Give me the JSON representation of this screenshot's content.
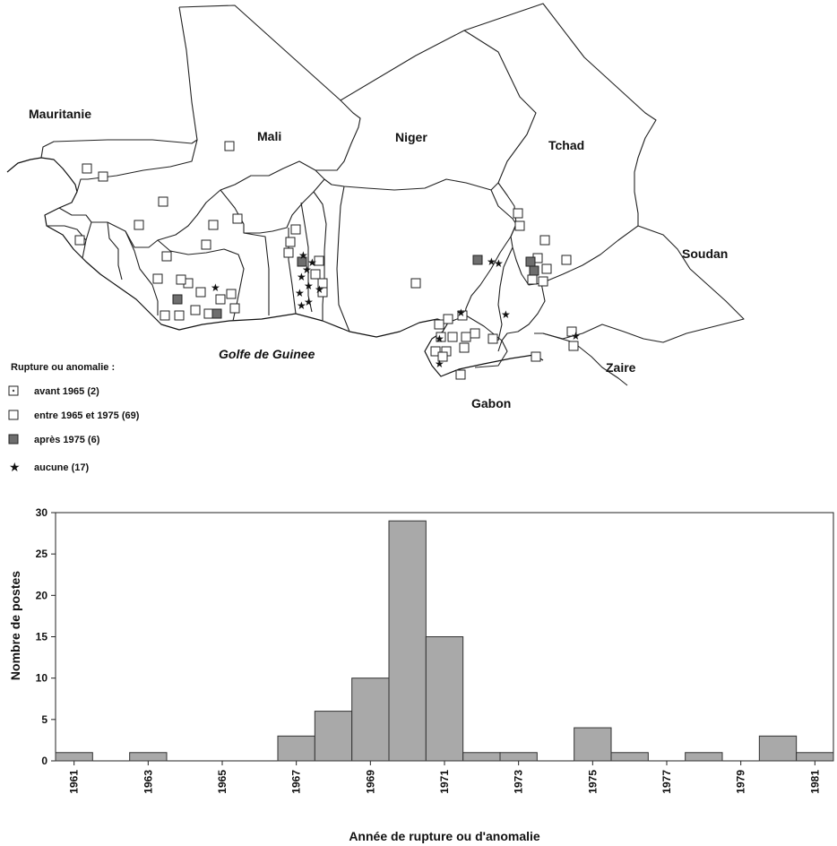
{
  "map": {
    "countries": [
      {
        "key": "mauritanie",
        "label": "Mauritanie"
      },
      {
        "key": "mali",
        "label": "Mali"
      },
      {
        "key": "niger",
        "label": "Niger"
      },
      {
        "key": "tchad",
        "label": "Tchad"
      },
      {
        "key": "soudan",
        "label": "Soudan"
      },
      {
        "key": "zaire",
        "label": "Zaire"
      },
      {
        "key": "gabon",
        "label": "Gabon"
      }
    ],
    "sea_label": "Golfe de Guinee"
  },
  "legend": {
    "title": "Rupture ou anomalie :",
    "items": [
      {
        "key": "avant",
        "label": "avant 1965 (2)",
        "symbol": "dotted-square"
      },
      {
        "key": "entre",
        "label": "entre 1965 et 1975 (69)",
        "symbol": "open-square"
      },
      {
        "key": "apres",
        "label": "après 1975 (6)",
        "symbol": "filled-square"
      },
      {
        "key": "aucune",
        "label": "aucune (17)",
        "symbol": "star"
      }
    ]
  },
  "colors": {
    "bar_fill": "#a9a9a9",
    "bar_stroke": "#333333",
    "filled_square": "#6e6e6e"
  },
  "chart_data": {
    "type": "bar",
    "title": "",
    "xlabel": "Année de rupture ou d'anomalie",
    "ylabel": "Nombre de postes",
    "ylim": [
      0,
      30
    ],
    "yticks": [
      0,
      5,
      10,
      15,
      20,
      25,
      30
    ],
    "xlim": [
      1960.5,
      1981.5
    ],
    "xtick_labels": [
      "1961",
      "1963",
      "1965",
      "1967",
      "1969",
      "1971",
      "1973",
      "1975",
      "1977",
      "1979",
      "1981"
    ],
    "categories": [
      1961,
      1962,
      1963,
      1964,
      1965,
      1966,
      1967,
      1968,
      1969,
      1970,
      1971,
      1972,
      1973,
      1974,
      1975,
      1976,
      1977,
      1978,
      1979,
      1980,
      1981
    ],
    "values": [
      1,
      0,
      1,
      0,
      0,
      0,
      3,
      6,
      10,
      29,
      15,
      1,
      1,
      0,
      4,
      1,
      0,
      1,
      0,
      3,
      1
    ],
    "grid": false
  }
}
